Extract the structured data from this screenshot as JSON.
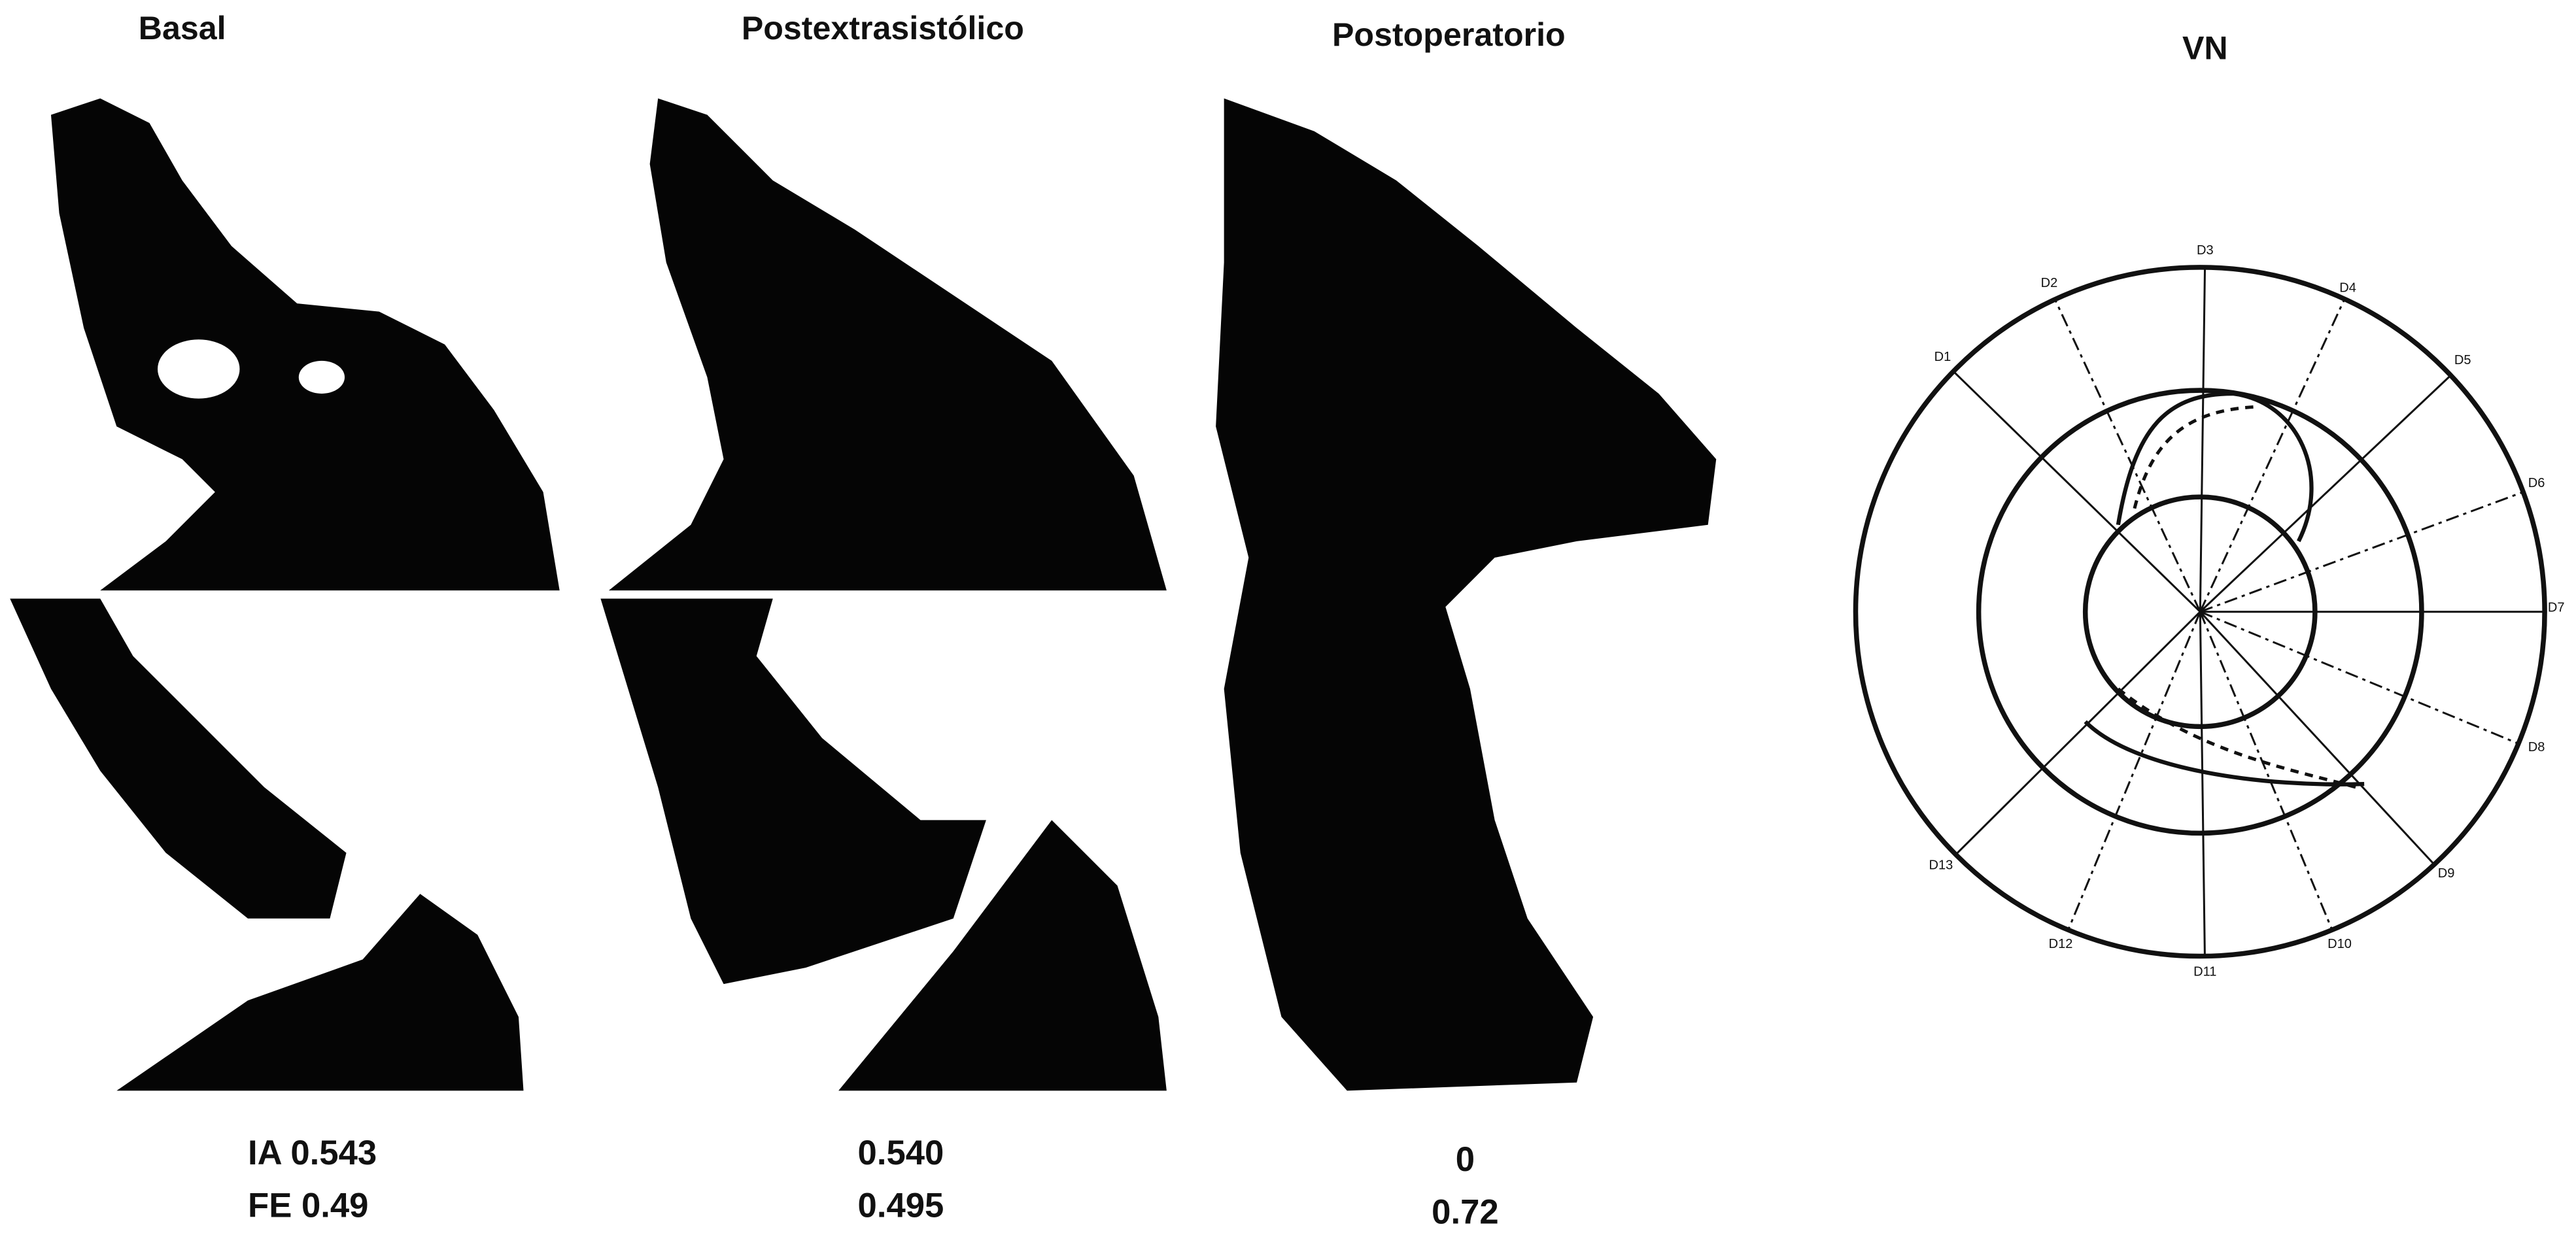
{
  "panels": [
    {
      "title": "Basal",
      "values": [
        "IA 0.543",
        "FE 0.49"
      ]
    },
    {
      "title": "Postextrasistólico",
      "values": [
        "0.540",
        "0.495"
      ]
    },
    {
      "title": "Postoperatorio",
      "values": [
        "0",
        "0.72"
      ]
    }
  ],
  "diagram": {
    "title": "VN",
    "labels": [
      "D1",
      "D2",
      "D3",
      "D4",
      "D5",
      "D6",
      "D7",
      "D8",
      "D9",
      "D10",
      "D11",
      "D12",
      "D13"
    ]
  }
}
